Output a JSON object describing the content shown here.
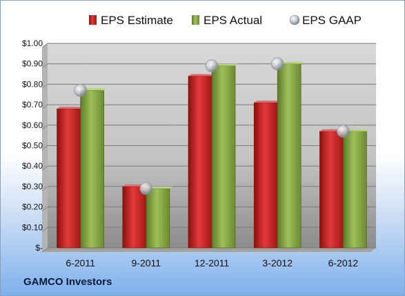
{
  "footer": {
    "company": "GAMCO Investors"
  },
  "colors": {
    "estimate": "#d42a2a",
    "actual": "#8fb04a",
    "gaap": "#c8ccd2"
  },
  "chart_data": {
    "type": "bar",
    "title": "",
    "xlabel": "",
    "ylabel": "",
    "categories": [
      "6-2011",
      "9-2011",
      "12-2011",
      "3-2012",
      "6-2012"
    ],
    "series": [
      {
        "name": "EPS Estimate",
        "kind": "bar",
        "values": [
          0.68,
          0.3,
          0.84,
          0.71,
          0.57
        ]
      },
      {
        "name": "EPS Actual",
        "kind": "bar",
        "values": [
          0.77,
          0.29,
          0.89,
          0.9,
          0.57
        ]
      },
      {
        "name": "EPS GAAP",
        "kind": "marker",
        "values": [
          0.77,
          0.29,
          0.89,
          0.9,
          0.57
        ]
      }
    ],
    "yticks": [
      "$-",
      "$0.10",
      "$0.20",
      "$0.30",
      "$0.40",
      "$0.50",
      "$0.60",
      "$0.70",
      "$0.80",
      "$0.90",
      "$1.00"
    ],
    "ylim": [
      0,
      1.0
    ],
    "grid": true,
    "legend": "top"
  }
}
